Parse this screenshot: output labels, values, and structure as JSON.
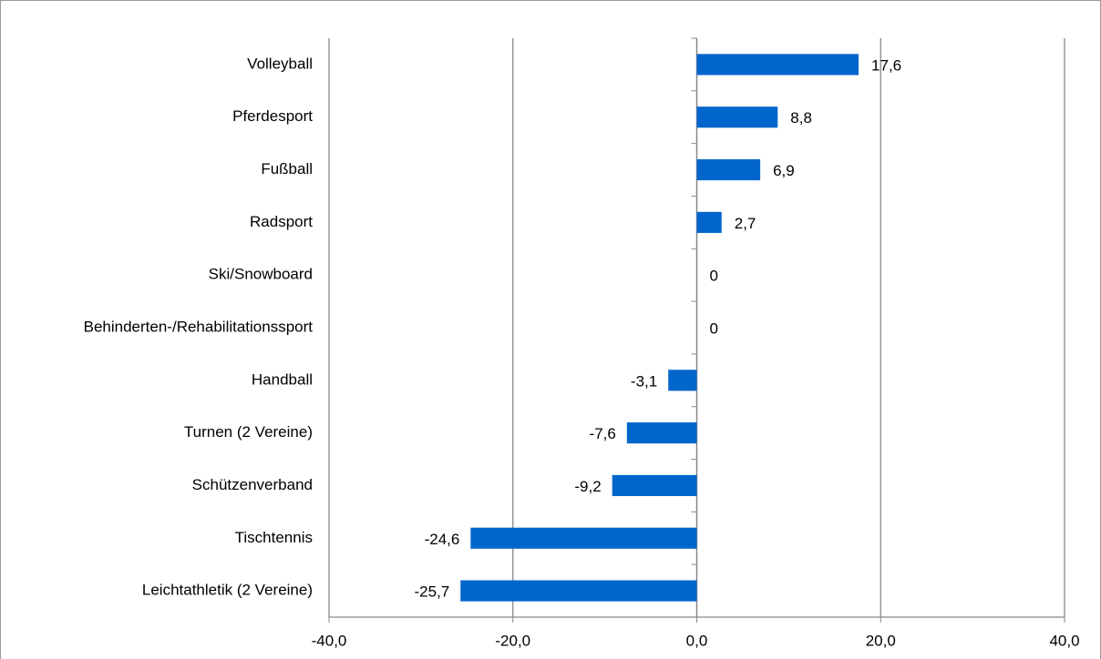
{
  "chart_data": {
    "type": "bar",
    "orientation": "horizontal",
    "categories": [
      "Volleyball",
      "Pferdesport",
      "Fußball",
      "Radsport",
      "Ski/Snowboard",
      "Behinderten-/Rehabilitationssport",
      "Handball",
      "Turnen (2 Vereine)",
      "Schützenverband",
      "Tischtennis",
      "Leichtathletik (2 Vereine)"
    ],
    "values": [
      17.6,
      8.8,
      6.9,
      2.7,
      0,
      0,
      -3.1,
      -7.6,
      -9.2,
      -24.6,
      -25.7
    ],
    "value_labels": [
      "17,6",
      "8,8",
      "6,9",
      "2,7",
      "0",
      "0",
      "-3,1",
      "-7,6",
      "-9,2",
      "-24,6",
      "-25,7"
    ],
    "color": "#0066cc",
    "xlim": [
      -40,
      40
    ],
    "xticks": [
      {
        "value": -40,
        "label": "-40,0"
      },
      {
        "value": -20,
        "label": "-20,0"
      },
      {
        "value": 0,
        "label": "0,0"
      },
      {
        "value": 20,
        "label": "20,0"
      },
      {
        "value": 40,
        "label": "40,0"
      }
    ],
    "grid": true
  }
}
